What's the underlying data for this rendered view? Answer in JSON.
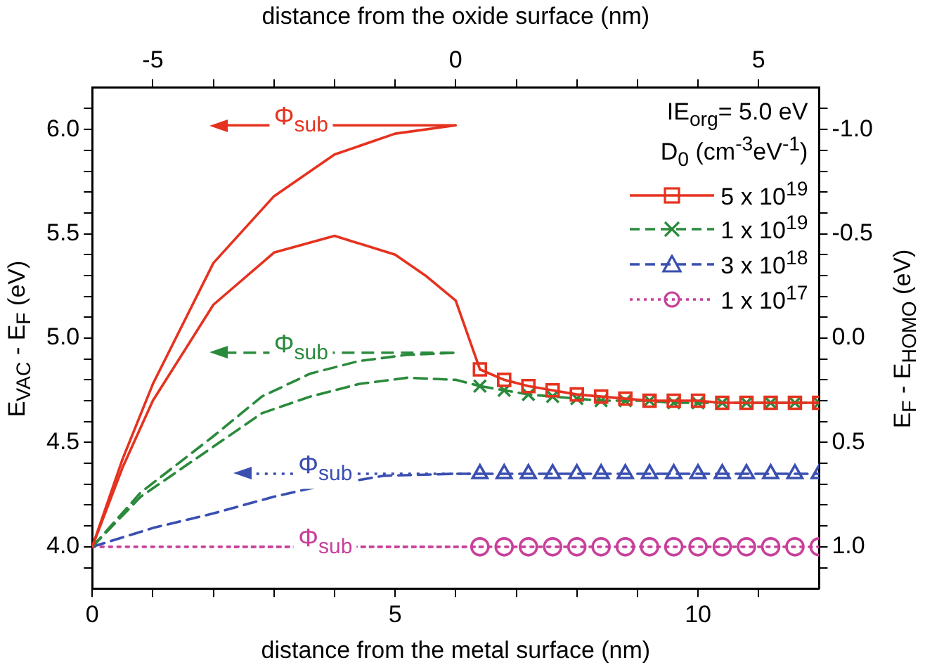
{
  "chart_data": {
    "type": "line",
    "xlabel": "distance from the metal surface (nm)",
    "x2label": "distance from the oxide surface (nm)",
    "ylabel": "E$_{VAC}$ - E$_{F}$ (eV)",
    "y2label": "E$_{F}$ - E$_{HOMO}$ (eV)",
    "legend_title": "D$_{0}$ (cm$^{-3}$eV$^{-1}$)",
    "legend": "top right",
    "grid": false,
    "xlim": [
      0,
      12
    ],
    "xticks": [
      0,
      {
        "value": 1,
        "label": null
      },
      {
        "value": 2,
        "label": null
      },
      {
        "value": 3,
        "label": null
      },
      {
        "value": 4,
        "label": null
      },
      5,
      {
        "value": 6,
        "label": null
      },
      {
        "value": 7,
        "label": null
      },
      {
        "value": 8,
        "label": null
      },
      {
        "value": 9,
        "label": null
      },
      10,
      {
        "value": 11,
        "label": null
      }
    ],
    "x2lim": [
      -6,
      6
    ],
    "x2ticks": [
      -5,
      {
        "value": -4,
        "label": null
      },
      {
        "value": -3,
        "label": null
      },
      {
        "value": -2,
        "label": null
      },
      {
        "value": -1,
        "label": null
      },
      0,
      {
        "value": 1,
        "label": null
      },
      {
        "value": 2,
        "label": null
      },
      {
        "value": 3,
        "label": null
      },
      {
        "value": 4,
        "label": null
      },
      5
    ],
    "ylim": [
      3.8,
      6.2
    ],
    "yticks": [
      {
        "value": 3.9,
        "label": null
      },
      {
        "value": 4,
        "label": "4.0"
      },
      {
        "value": 4.1,
        "label": null
      },
      {
        "value": 4.2,
        "label": null
      },
      {
        "value": 4.3,
        "label": null
      },
      {
        "value": 4.4,
        "label": null
      },
      4.5,
      {
        "value": 4.6,
        "label": null
      },
      {
        "value": 4.7,
        "label": null
      },
      {
        "value": 4.8,
        "label": null
      },
      {
        "value": 4.9,
        "label": null
      },
      {
        "value": 5,
        "label": "5.0"
      },
      {
        "value": 5.1,
        "label": null
      },
      {
        "value": 5.2,
        "label": null
      },
      {
        "value": 5.3,
        "label": null
      },
      {
        "value": 5.4,
        "label": null
      },
      5.5,
      {
        "value": 5.6,
        "label": null
      },
      {
        "value": 5.7,
        "label": null
      },
      {
        "value": 5.8,
        "label": null
      },
      {
        "value": 5.9,
        "label": null
      },
      {
        "value": 6,
        "label": "6.0"
      },
      {
        "value": 6.1,
        "label": null
      }
    ],
    "y2lim": [
      1.2,
      -1.2
    ],
    "y2ticks": [
      {
        "value": -1.1,
        "label": null
      },
      {
        "value": -1,
        "label": "-1.0"
      },
      {
        "value": -0.9,
        "label": null
      },
      {
        "value": -0.8,
        "label": null
      },
      {
        "value": -0.7,
        "label": null
      },
      {
        "value": -0.6,
        "label": null
      },
      -0.5,
      {
        "value": -0.4,
        "label": null
      },
      {
        "value": -0.3,
        "label": null
      },
      {
        "value": -0.2,
        "label": null
      },
      {
        "value": -0.1,
        "label": null
      },
      {
        "value": 0,
        "label": "0.0"
      },
      {
        "value": 0.1,
        "label": null
      },
      {
        "value": 0.2,
        "label": null
      },
      {
        "value": 0.3,
        "label": null
      },
      {
        "value": 0.4,
        "label": null
      },
      0.5,
      {
        "value": 0.6,
        "label": null
      },
      {
        "value": 0.7,
        "label": null
      },
      {
        "value": 0.8,
        "label": null
      },
      {
        "value": 0.9,
        "label": null
      },
      {
        "value": 1,
        "label": "1.0"
      },
      {
        "value": 1.1,
        "label": null
      }
    ],
    "ref_lines": [
      {
        "axis": "y",
        "value": 6.02,
        "label": "Φ$_{sub}$",
        "color": "#e5321f",
        "line_style": "solid"
      },
      {
        "axis": "y",
        "value": 4.93,
        "label": "Φ$_{sub}$",
        "color": "#2a8a3c",
        "line_style": "dashed"
      },
      {
        "axis": "y",
        "value": 4.35,
        "label": "Φ$_{sub}$",
        "color": "#3a4fb0",
        "line_style": "dotted"
      },
      {
        "axis": "y",
        "value": 4,
        "label": "Φ$_{sub}$",
        "color": "#c8409a",
        "line_style": "dotted"
      }
    ],
    "annotations": [
      "IE$_{org}$= 5.0 eV"
    ],
    "series": [
      {
        "type": "line",
        "color": "#e5321f",
        "line_style": "solid",
        "x": [
          0,
          0.5,
          1,
          2,
          3,
          4,
          5,
          6
        ],
        "values": [
          4,
          4.42,
          4.78,
          5.36,
          5.68,
          5.88,
          5.98,
          6.02
        ]
      },
      {
        "type": "line",
        "color": "#e5321f",
        "line_style": "solid",
        "x": [
          0,
          0.5,
          1,
          2,
          3,
          4,
          5,
          5.5,
          6,
          6.4
        ],
        "values": [
          4,
          4.38,
          4.7,
          5.16,
          5.41,
          5.49,
          5.4,
          5.3,
          5.18,
          4.85
        ]
      },
      {
        "type": "line",
        "color": "#2a8a3c",
        "line_style": "dashed",
        "x": [
          0,
          0.8,
          1.6,
          2,
          2.8,
          3.6,
          4.4,
          5.2,
          6
        ],
        "values": [
          4,
          4.26,
          4.44,
          4.53,
          4.72,
          4.83,
          4.89,
          4.92,
          4.93
        ]
      },
      {
        "type": "line",
        "color": "#2a8a3c",
        "line_style": "dashed",
        "x": [
          0,
          0.8,
          1.6,
          2,
          2.8,
          3.6,
          4.4,
          5.2,
          6,
          6.4
        ],
        "values": [
          4,
          4.24,
          4.4,
          4.48,
          4.64,
          4.72,
          4.78,
          4.81,
          4.8,
          4.77
        ]
      },
      {
        "type": "line",
        "color": "#3a4fb0",
        "line_style": "dashed",
        "x": [
          0,
          1,
          2,
          3,
          3.6,
          4.8,
          6,
          6.4
        ],
        "values": [
          4,
          4.09,
          4.16,
          4.24,
          4.28,
          4.34,
          4.35,
          4.35
        ]
      },
      {
        "type": "line",
        "color": "#c8409a",
        "line_style": "dotted",
        "x": [
          0,
          6.4
        ],
        "values": [
          4,
          4
        ]
      },
      {
        "type": "line",
        "name": "5 x 10$^{19}$",
        "color": "#e5321f",
        "line_style": "solid",
        "marker": "square",
        "x": [
          6.4,
          6.8,
          7.2,
          7.6,
          8,
          8.4,
          8.8,
          9.2,
          9.6,
          10,
          10.4,
          10.8,
          11.2,
          11.6,
          12
        ],
        "values": [
          4.85,
          4.8,
          4.77,
          4.75,
          4.73,
          4.72,
          4.71,
          4.7,
          4.7,
          4.7,
          4.69,
          4.69,
          4.69,
          4.69,
          4.69
        ]
      },
      {
        "type": "line",
        "name": "1 x 10$^{19}$",
        "color": "#2a8a3c",
        "line_style": "dashed",
        "marker": "cross",
        "x": [
          6.4,
          6.8,
          7.2,
          7.6,
          8,
          8.4,
          8.8,
          9.2,
          9.6,
          10,
          10.4,
          10.8,
          11.2,
          11.6,
          12
        ],
        "values": [
          4.77,
          4.75,
          4.73,
          4.72,
          4.71,
          4.7,
          4.7,
          4.7,
          4.69,
          4.69,
          4.69,
          4.69,
          4.69,
          4.69,
          4.69
        ]
      },
      {
        "type": "line",
        "name": "3 x 10$^{18}$",
        "color": "#3a4fb0",
        "line_style": "dashed",
        "marker": "triangle",
        "x": [
          6.4,
          6.8,
          7.2,
          7.6,
          8,
          8.4,
          8.8,
          9.2,
          9.6,
          10,
          10.4,
          10.8,
          11.2,
          11.6,
          12
        ],
        "values": [
          4.35,
          4.35,
          4.35,
          4.35,
          4.35,
          4.35,
          4.35,
          4.35,
          4.35,
          4.35,
          4.35,
          4.35,
          4.35,
          4.35,
          4.35
        ]
      },
      {
        "type": "line",
        "name": "1 x 10$^{17}$",
        "color": "#c8409a",
        "line_style": "dotted",
        "marker": "circle",
        "x": [
          6.4,
          6.8,
          7.2,
          7.6,
          8,
          8.4,
          8.8,
          9.2,
          9.6,
          10,
          10.4,
          10.8,
          11.2,
          11.6,
          12
        ],
        "values": [
          4,
          4,
          4,
          4,
          4,
          4,
          4,
          4,
          4,
          4,
          4,
          4,
          4,
          4,
          4
        ]
      }
    ]
  }
}
